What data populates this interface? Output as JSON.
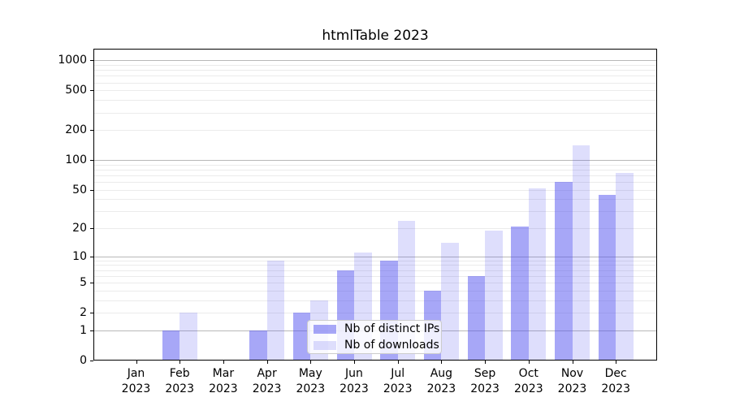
{
  "chart_data": {
    "type": "bar",
    "title": "htmlTable 2023",
    "categories": [
      "Jan 2023",
      "Feb 2023",
      "Mar 2023",
      "Apr 2023",
      "May 2023",
      "Jun 2023",
      "Jul 2023",
      "Aug 2023",
      "Sep 2023",
      "Oct 2023",
      "Nov 2023",
      "Dec 2023"
    ],
    "series": [
      {
        "name": "Nb of distinct IPs",
        "key": "ips",
        "color": "#5050F080",
        "values": [
          0,
          1,
          0,
          1,
          2,
          7,
          9,
          4,
          6,
          21,
          60,
          44
        ]
      },
      {
        "name": "Nb of downloads",
        "key": "downloads",
        "color": "#5050F030",
        "values": [
          0,
          2,
          0,
          9,
          3,
          11,
          24,
          14,
          19,
          52,
          140,
          74
        ]
      }
    ],
    "xlabel": "",
    "ylabel": "",
    "yscale": "log1p",
    "ylim": [
      0,
      1300
    ],
    "yticks": [
      {
        "value": 0,
        "label": "0"
      },
      {
        "value": 1,
        "label": "1"
      },
      {
        "value": 2,
        "label": "2"
      },
      {
        "value": 5,
        "label": "5"
      },
      {
        "value": 10,
        "label": "10"
      },
      {
        "value": 20,
        "label": "20"
      },
      {
        "value": 50,
        "label": "50"
      },
      {
        "value": 100,
        "label": "100"
      },
      {
        "value": 200,
        "label": "200"
      },
      {
        "value": 500,
        "label": "500"
      },
      {
        "value": 1000,
        "label": "1000"
      }
    ],
    "grid": true,
    "grid_major_values": [
      1,
      10,
      100,
      1000
    ],
    "legend_position": "lower center",
    "colors": {
      "major_gridline": "#b8b8b8",
      "minor_gridline": "#ebebeb",
      "axis": "#000000",
      "bar_ips_effective": "#aaaaf8",
      "bar_downloads_effective": "#dcdcfa"
    }
  }
}
